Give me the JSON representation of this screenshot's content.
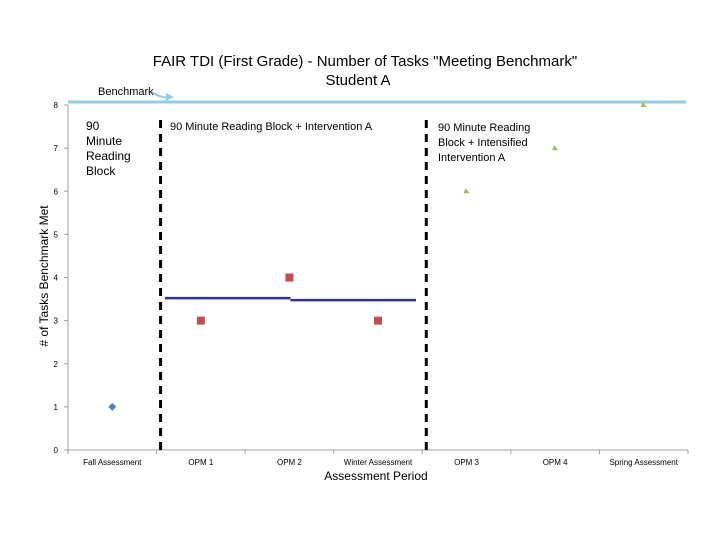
{
  "chart_data": {
    "type": "scatter",
    "title_lines": [
      "FAIR TDI (First Grade) - Number of Tasks \"Meeting Benchmark\"",
      "Student A"
    ],
    "xlabel": "Assessment Period",
    "ylabel": "# of Tasks Benchmark Met",
    "categories": [
      "Fall Assessment",
      "OPM 1",
      "OPM 2",
      "Winter Assessment",
      "OPM 3",
      "OPM 4",
      "Spring Assessment"
    ],
    "ylim": [
      0,
      8
    ],
    "yticks": [
      "0",
      "1",
      "2",
      "3",
      "4",
      "5",
      "6",
      "7",
      "8"
    ],
    "grid": false,
    "series": [
      {
        "marker": "diamond",
        "color": "#4f81bd",
        "points": [
          {
            "x": "Fall Assessment",
            "y": 1
          }
        ]
      },
      {
        "marker": "square",
        "color": "#c0504d",
        "points": [
          {
            "x": "OPM 1",
            "y": 3
          },
          {
            "x": "OPM 2",
            "y": 4
          },
          {
            "x": "Winter Assessment",
            "y": 3
          }
        ]
      },
      {
        "marker": "triangle",
        "color": "#9bbb59",
        "points": [
          {
            "x": "OPM 3",
            "y": 6
          },
          {
            "x": "OPM 4",
            "y": 7
          },
          {
            "x": "Spring Assessment",
            "y": 8
          }
        ]
      }
    ],
    "trend_line": {
      "color": "#2e3192",
      "values": [
        3.5,
        3.5
      ]
    },
    "benchmark": {
      "label": "Benchmark",
      "value": 8,
      "color": "#93cddd"
    },
    "phase_dividers": {
      "after_categories": [
        "Fall Assessment",
        "Winter Assessment"
      ],
      "style": "dashed",
      "color": "#000000"
    },
    "phase_labels": [
      {
        "lines": [
          "90",
          "Minute",
          "Reading",
          "Block"
        ]
      },
      {
        "lines": [
          "90 Minute Reading Block + Intervention A"
        ]
      },
      {
        "lines": [
          "90 Minute Reading",
          "Block + Intensified",
          "Intervention A"
        ]
      }
    ]
  }
}
